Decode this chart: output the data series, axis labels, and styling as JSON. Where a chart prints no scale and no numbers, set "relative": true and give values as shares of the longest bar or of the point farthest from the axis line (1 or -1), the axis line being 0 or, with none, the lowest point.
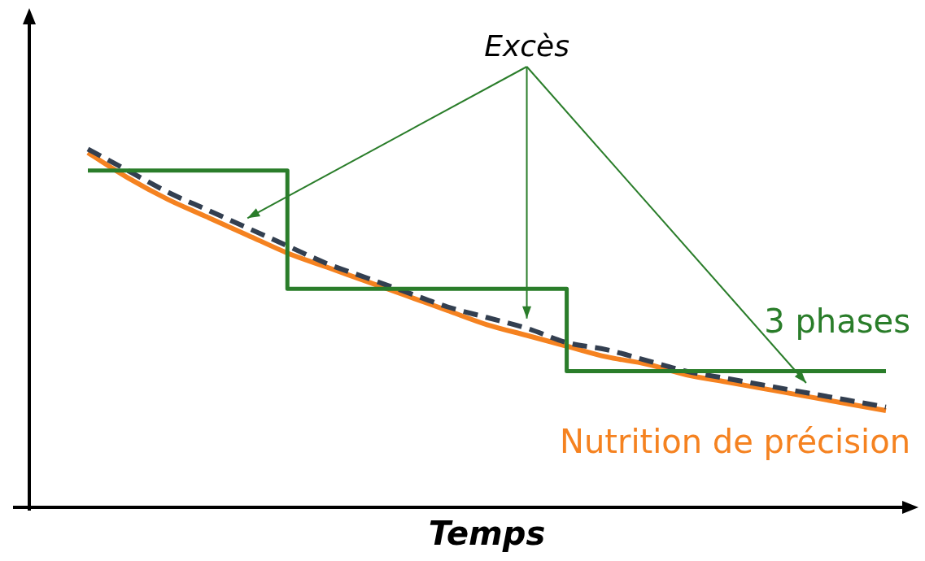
{
  "chart_data": {
    "type": "line",
    "relative": true,
    "xlabel": "Temps",
    "legend": false,
    "annotations": [
      "Excès"
    ],
    "categories": [
      null,
      null,
      null,
      null,
      null,
      null,
      null,
      null,
      null,
      null,
      null,
      null,
      null,
      null,
      null,
      null,
      null,
      null,
      null,
      null,
      null
    ],
    "series": [
      {
        "type": "step",
        "name": "3 phases",
        "color": "#2a7d2a",
        "values": [
          0.94,
          0.94,
          0.94,
          0.94,
          0.94,
          0.94,
          0.61,
          0.61,
          0.61,
          0.61,
          0.61,
          0.61,
          0.61,
          0.38,
          0.38,
          0.38,
          0.38,
          0.38,
          0.38,
          0.38,
          0.38
        ]
      },
      {
        "type": "line",
        "color": "#333f50",
        "line_style": "dashed",
        "values": [
          1,
          0.94,
          0.88,
          0.83,
          0.78,
          0.73,
          0.68,
          0.64,
          0.6,
          0.56,
          0.53,
          0.5,
          0.46,
          0.44,
          0.41,
          0.38,
          0.36,
          0.34,
          0.32,
          0.3,
          0.28
        ]
      },
      {
        "type": "line",
        "name": "Nutrition de précision",
        "color": "#f58220",
        "values": [
          0.99,
          0.92,
          0.86,
          0.81,
          0.76,
          0.71,
          0.67,
          0.63,
          0.59,
          0.55,
          0.51,
          0.48,
          0.45,
          0.42,
          0.4,
          0.37,
          0.35,
          0.33,
          0.31,
          0.29,
          0.27
        ]
      }
    ]
  }
}
